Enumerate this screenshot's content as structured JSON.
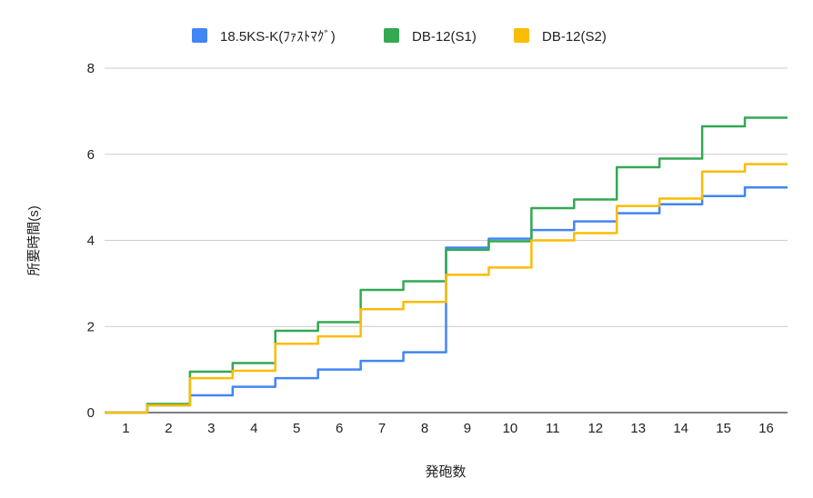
{
  "chart_data": {
    "type": "line",
    "step": true,
    "title": "",
    "xlabel": "発砲数",
    "ylabel": "所要時間(s)",
    "categories": [
      "1",
      "2",
      "3",
      "4",
      "5",
      "6",
      "7",
      "8",
      "9",
      "10",
      "11",
      "12",
      "13",
      "14",
      "15",
      "16"
    ],
    "ylim": [
      0,
      8
    ],
    "yticks": [
      0,
      2,
      4,
      6,
      8
    ],
    "grid": true,
    "legend": "top",
    "series": [
      {
        "name": "18.5KS-K(ﾌｧｽﾄﾏｸﾞ)",
        "color": "#4285f4",
        "values": [
          0,
          0.17,
          0.4,
          0.6,
          0.8,
          1.0,
          1.2,
          1.4,
          3.83,
          4.04,
          4.24,
          4.44,
          4.63,
          4.84,
          5.03,
          5.23
        ]
      },
      {
        "name": "DB-12(S1)",
        "color": "#34a853",
        "values": [
          0,
          0.2,
          0.95,
          1.15,
          1.9,
          2.1,
          2.85,
          3.05,
          3.78,
          3.98,
          4.75,
          4.95,
          5.7,
          5.9,
          6.65,
          6.85
        ]
      },
      {
        "name": "DB-12(S2)",
        "color": "#fbbc04",
        "values": [
          0,
          0.17,
          0.8,
          0.97,
          1.6,
          1.77,
          2.4,
          2.57,
          3.2,
          3.37,
          4.0,
          4.17,
          4.8,
          4.97,
          5.6,
          5.77
        ]
      }
    ]
  }
}
